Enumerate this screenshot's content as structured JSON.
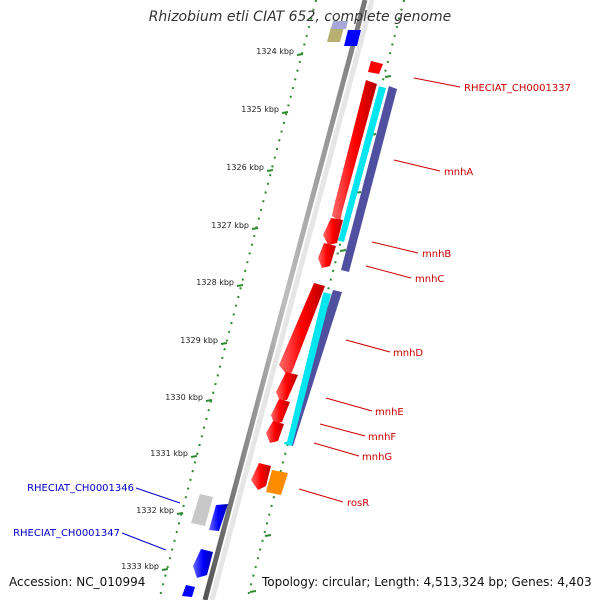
{
  "title": "Rhizobium etli CIAT 652, complete genome",
  "accession": "Accession: NC_010994",
  "topology": "Topology: circular; Length: 4,513,324 bp; Genes: 4,403",
  "kbp_labels": [
    "1324 kbp",
    "1325 kbp",
    "1326 kbp",
    "1327 kbp",
    "1328 kbp",
    "1329 kbp",
    "1330 kbp",
    "1331 kbp",
    "1332 kbp",
    "1333 kbp"
  ],
  "gene_labels": [
    {
      "text": "RHECIAT_CH0001337",
      "color": "#cc0000"
    },
    {
      "text": "mnhA",
      "color": "#cc0000"
    },
    {
      "text": "mnhB",
      "color": "#cc0000"
    },
    {
      "text": "mnhC",
      "color": "#cc0000"
    },
    {
      "text": "mnhD",
      "color": "#cc0000"
    },
    {
      "text": "mnhE",
      "color": "#cc0000"
    },
    {
      "text": "mnhF",
      "color": "#cc0000"
    },
    {
      "text": "mnhG",
      "color": "#cc0000"
    },
    {
      "text": "rosR",
      "color": "#cc0000"
    },
    {
      "text": "RHECIAT_CH0001346",
      "color": "#0000cc"
    },
    {
      "text": "RHECIAT_CH0001347",
      "color": "#0000cc"
    }
  ],
  "colors": {
    "red_feature": "#ff0000",
    "cyan_feature": "#00e5ee",
    "purple_feature": "#5050a0",
    "blue_feature": "#0000ff",
    "gray_feature": "#c8c8c8",
    "orange_feature": "#ff8c00",
    "olive_feature": "#b8b070",
    "tick_green": "#2d8a2d",
    "backbone": "#909090"
  }
}
